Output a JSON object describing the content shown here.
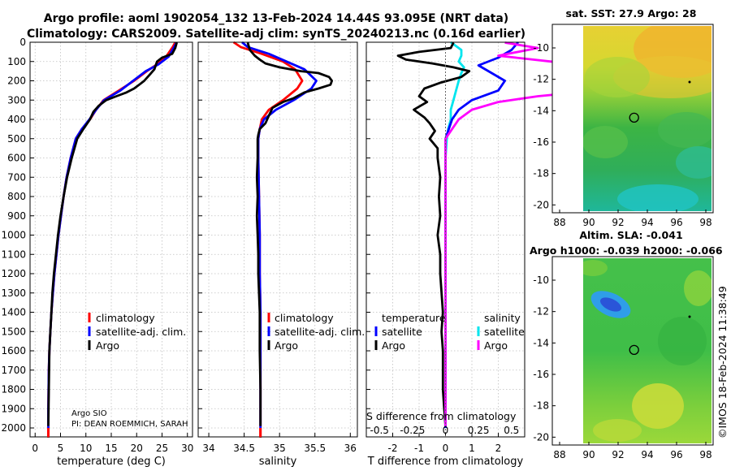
{
  "title": {
    "line1": "Argo profile: aoml 1902054_132 13-Feb-2024 14.44S 93.095E (NRT data)",
    "line2": "Climatology: CARS2009. Satellite-adj clim: synTS_20240213.nc (0.16d earlier)"
  },
  "depth_ticks": [
    0,
    100,
    200,
    300,
    400,
    500,
    600,
    700,
    800,
    900,
    1000,
    1100,
    1200,
    1300,
    1400,
    1500,
    1600,
    1700,
    1800,
    1900,
    2000
  ],
  "colors": {
    "climatology": "#ff0000",
    "satellite": "#0000ff",
    "argo": "#000000",
    "t_sat": "#00e5ee",
    "s_argo": "#ff00ff",
    "grid": "#bfbfbf"
  },
  "credit": {
    "line1": "Argo SIO",
    "line2": "PI: DEAN ROEMMICH, SARAH"
  },
  "stamp": "©IMOS 18-Feb-2024 11:38:49",
  "chart_data": [
    {
      "type": "line",
      "name": "temperature",
      "xlabel": "temperature (deg C)",
      "xlim": [
        -1,
        31
      ],
      "ylim": [
        0,
        2050
      ],
      "xticks": [
        0,
        5,
        10,
        15,
        20,
        25,
        30
      ],
      "legend": [
        "climatology",
        "satellite-adj. clim.",
        "Argo"
      ],
      "series": [
        {
          "name": "climatology",
          "color": "#ff0000",
          "x": [
            27.6,
            27.1,
            25.8,
            24.0,
            22.0,
            19.5,
            16.5,
            13.5,
            12.0,
            10.8,
            9.2,
            8.0,
            7.0,
            6.2,
            5.6,
            5.1,
            4.6,
            4.2,
            3.8,
            3.5,
            3.2,
            3.0,
            2.8,
            2.7,
            2.6,
            2.6
          ],
          "y": [
            0,
            25,
            75,
            115,
            150,
            200,
            250,
            300,
            350,
            400,
            450,
            500,
            600,
            700,
            800,
            900,
            1000,
            1100,
            1200,
            1300,
            1400,
            1500,
            1600,
            1700,
            1900,
            2050
          ]
        },
        {
          "name": "satellite-adj. clim.",
          "color": "#0000ff",
          "x": [
            27.9,
            27.4,
            26.3,
            24.3,
            21.8,
            19.3,
            16.8,
            13.6,
            12.0,
            10.7,
            9.2,
            8.0,
            7.0,
            6.2,
            5.6,
            5.1,
            4.6,
            4.2,
            3.8,
            3.5,
            3.2,
            3.0,
            2.8,
            2.7,
            2.6,
            2.6
          ],
          "y": [
            0,
            25,
            75,
            115,
            150,
            200,
            250,
            300,
            350,
            400,
            450,
            500,
            600,
            700,
            800,
            900,
            1000,
            1100,
            1200,
            1300,
            1400,
            1500,
            1600,
            1700,
            1900,
            2000
          ]
        },
        {
          "name": "Argo",
          "color": "#000000",
          "x": [
            27.9,
            27.6,
            27.0,
            25.0,
            24.0,
            23.5,
            22.5,
            21.5,
            20.5,
            19.5,
            18.0,
            16.0,
            14.0,
            12.5,
            11.5,
            10.8,
            9.5,
            8.3,
            7.2,
            6.3,
            5.6,
            5.0,
            4.5,
            4.1,
            3.7,
            3.4,
            3.2,
            3.0,
            2.8,
            2.7,
            2.6
          ],
          "y": [
            2,
            30,
            60,
            80,
            100,
            140,
            170,
            200,
            220,
            240,
            260,
            280,
            300,
            330,
            360,
            400,
            450,
            500,
            600,
            700,
            800,
            900,
            1000,
            1100,
            1200,
            1300,
            1400,
            1500,
            1600,
            1800,
            1990
          ]
        }
      ]
    },
    {
      "type": "line",
      "name": "salinity",
      "xlabel": "salinity",
      "xlim": [
        33.85,
        36.1
      ],
      "ylim": [
        0,
        2050
      ],
      "xticks": [
        34,
        34.5,
        35,
        35.5,
        36
      ],
      "legend": [
        "climatology",
        "satellite-adj. clim.",
        "Argo"
      ],
      "series": [
        {
          "name": "climatology",
          "color": "#ff0000",
          "x": [
            34.35,
            34.45,
            34.75,
            35.05,
            35.22,
            35.32,
            35.25,
            35.05,
            34.85,
            34.75,
            34.72,
            34.7,
            34.7,
            34.71,
            34.72,
            34.72,
            34.73,
            34.73,
            34.73,
            34.73,
            34.73
          ],
          "y": [
            0,
            25,
            60,
            100,
            140,
            200,
            240,
            300,
            350,
            400,
            450,
            500,
            600,
            800,
            1000,
            1200,
            1400,
            1600,
            1800,
            2000,
            2050
          ]
        },
        {
          "name": "satellite-adj. clim.",
          "color": "#0000ff",
          "x": [
            34.47,
            34.55,
            34.85,
            35.1,
            35.35,
            35.52,
            35.45,
            35.2,
            34.95,
            34.78,
            34.72,
            34.7,
            34.7,
            34.71,
            34.72,
            34.72,
            34.73,
            34.73,
            34.73,
            34.73
          ],
          "y": [
            0,
            25,
            60,
            100,
            140,
            200,
            240,
            300,
            350,
            400,
            450,
            500,
            600,
            800,
            1000,
            1200,
            1400,
            1600,
            1800,
            2000
          ]
        },
        {
          "name": "Argo",
          "color": "#000000",
          "x": [
            34.55,
            34.58,
            34.65,
            34.72,
            34.8,
            35.0,
            35.3,
            35.55,
            35.7,
            35.74,
            35.72,
            35.55,
            35.35,
            35.2,
            35.05,
            34.9,
            34.85,
            34.8,
            34.72,
            34.7,
            34.69,
            34.69,
            34.68,
            34.69,
            34.68,
            34.69,
            34.7,
            34.7,
            34.71,
            34.72,
            34.72,
            34.73,
            34.73
          ],
          "y": [
            2,
            40,
            70,
            90,
            110,
            130,
            150,
            160,
            180,
            200,
            220,
            240,
            260,
            290,
            310,
            340,
            380,
            420,
            450,
            480,
            500,
            600,
            700,
            800,
            900,
            1000,
            1100,
            1200,
            1300,
            1400,
            1600,
            1800,
            1990
          ]
        }
      ]
    },
    {
      "type": "line",
      "name": "differences",
      "xlabel": "T difference from climatology",
      "xlabel_top": "S difference from climatology",
      "xlim": [
        -3,
        3
      ],
      "ylim": [
        0,
        2050
      ],
      "xticks": [
        -2,
        -1,
        0,
        1,
        2
      ],
      "top_ticks": [
        "-0.5",
        "-0.25",
        "0",
        "0.25",
        "0.5"
      ],
      "top_tick_values": [
        -0.5,
        -0.25,
        0,
        0.25,
        0.5
      ],
      "legend_t": [
        "temperature",
        "satellite",
        "Argo"
      ],
      "legend_s": [
        "salinity",
        "satellite",
        "Argo"
      ],
      "series": [
        {
          "name": "T satellite",
          "color": "#00e5ee",
          "x": [
            0.2,
            0.4,
            0.6,
            0.6,
            0.5,
            0.7,
            0.6,
            0.5,
            0.4,
            0.3,
            0.2,
            0.2,
            0.1,
            0.05,
            0.0,
            0.0,
            0.0,
            0.0,
            0.0,
            0.0,
            0.0
          ],
          "y": [
            0,
            20,
            40,
            70,
            100,
            130,
            160,
            200,
            250,
            300,
            350,
            400,
            450,
            500,
            600,
            800,
            1000,
            1200,
            1500,
            1800,
            2000
          ]
        },
        {
          "name": "T Argo",
          "color": "#000000",
          "x": [
            0.3,
            0.2,
            -1.0,
            -1.8,
            -1.5,
            -0.5,
            0.3,
            0.9,
            0.6,
            -0.2,
            -0.8,
            -1.0,
            -0.7,
            -1.2,
            -0.8,
            -0.6,
            -0.4,
            -0.6,
            -0.3,
            -0.3,
            -0.2,
            -0.25,
            -0.2,
            -0.3,
            -0.2,
            -0.2,
            -0.1,
            -0.15,
            -0.1,
            -0.1,
            -0.05,
            0.0
          ],
          "y": [
            2,
            30,
            50,
            70,
            90,
            110,
            130,
            150,
            180,
            210,
            240,
            280,
            310,
            350,
            390,
            420,
            460,
            500,
            550,
            600,
            700,
            800,
            900,
            1000,
            1100,
            1200,
            1400,
            1500,
            1600,
            1800,
            1900,
            1990
          ]
        },
        {
          "name": "S satellite",
          "color": "#0000ff",
          "x": [
            0.55,
            0.5,
            0.4,
            0.25,
            0.35,
            0.45,
            0.4,
            0.2,
            0.1,
            0.05,
            0.0,
            0.0,
            0.0,
            0.0,
            0.0,
            0.0
          ],
          "y": [
            0,
            40,
            80,
            120,
            160,
            200,
            250,
            300,
            350,
            400,
            500,
            700,
            900,
            1200,
            1600,
            2000
          ]
        },
        {
          "name": "S Argo",
          "color": "#ff00ff",
          "x": [
            0.45,
            0.7,
            0.4,
            0.8,
            1.2,
            1.5,
            1.2,
            1.0,
            0.7,
            0.4,
            0.2,
            0.1,
            0.05,
            0.0,
            0.0,
            0.0,
            0.0,
            0.0,
            0.0,
            0.0,
            0.0
          ],
          "y": [
            2,
            30,
            70,
            100,
            150,
            200,
            240,
            260,
            280,
            310,
            350,
            400,
            450,
            500,
            600,
            800,
            1000,
            1200,
            1500,
            1800,
            1990
          ]
        }
      ]
    },
    {
      "type": "heatmap",
      "name": "sst_map",
      "title": "sat. SST: 27.9 Argo: 28",
      "xticks": [
        88,
        90,
        92,
        94,
        96,
        98
      ],
      "yticks": [
        -10,
        -12,
        -14,
        -16,
        -18,
        -20
      ],
      "xlim": [
        87.5,
        98.5
      ],
      "ylim": [
        -20.5,
        -8.5
      ],
      "float_position": [
        93.095,
        -14.44
      ]
    },
    {
      "type": "heatmap",
      "name": "sla_map",
      "title_line1": "Altim. SLA: -0.041",
      "title_line2": "Argo h1000: -0.039 h2000: -0.066",
      "xticks": [
        88,
        90,
        92,
        94,
        96,
        98
      ],
      "yticks": [
        -10,
        -12,
        -14,
        -16,
        -18,
        -20
      ],
      "xlim": [
        87.5,
        98.5
      ],
      "ylim": [
        -20.5,
        -8.5
      ],
      "float_position": [
        93.095,
        -14.44
      ]
    }
  ]
}
